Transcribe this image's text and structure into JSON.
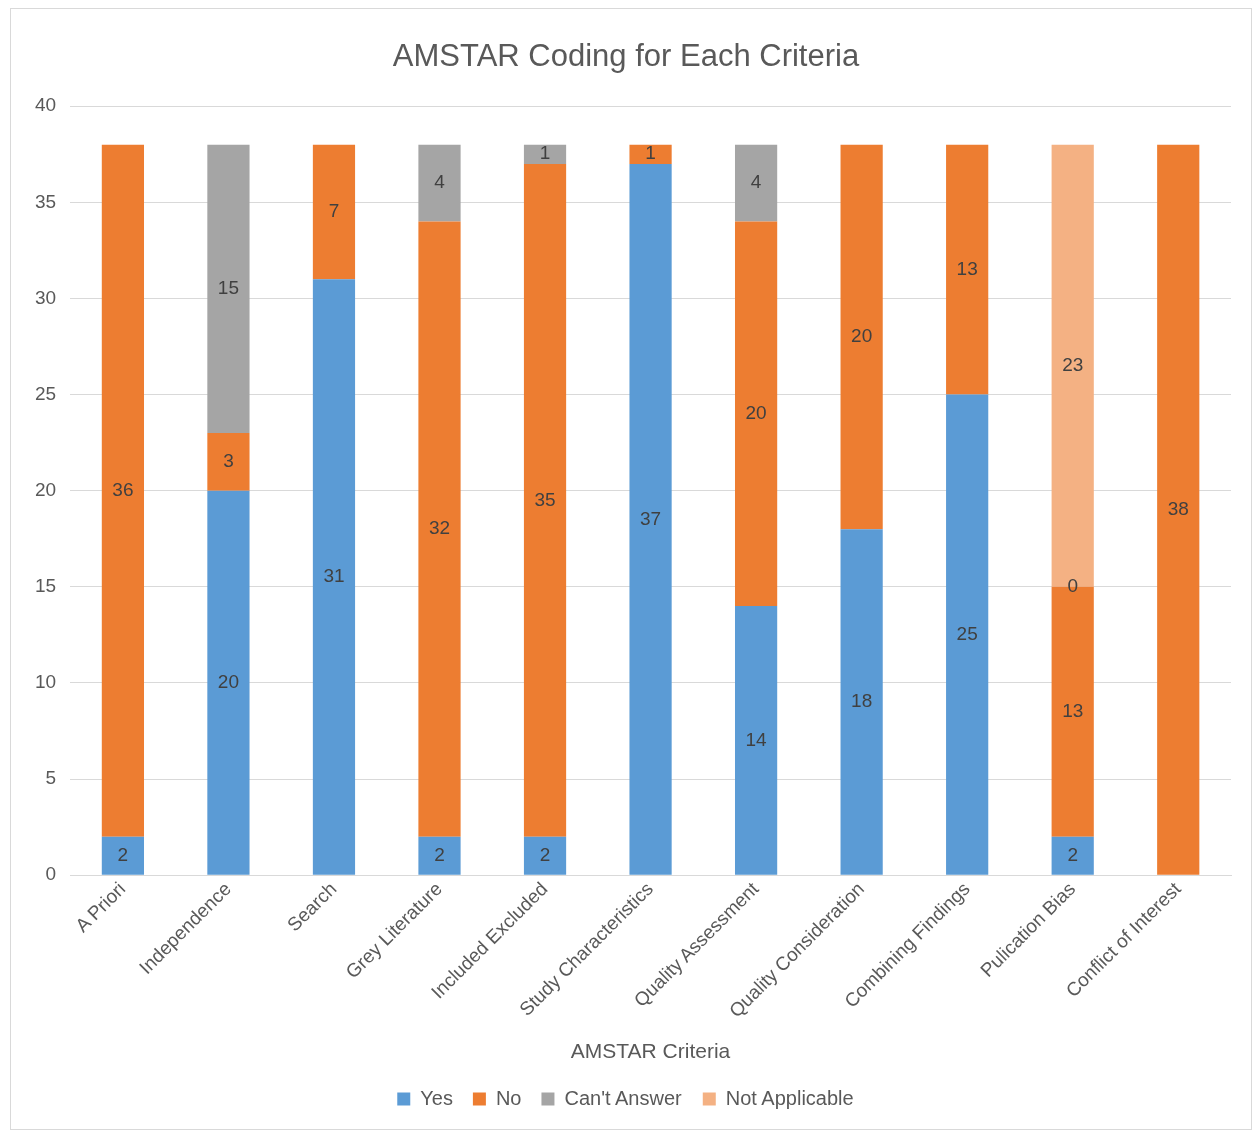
{
  "chart_data": {
    "type": "bar",
    "title": "AMSTAR Coding for Each Criteria",
    "xlabel": "AMSTAR Criteria",
    "categories": [
      "A Priori",
      "Independence",
      "Search",
      "Grey Literature",
      "Included Excluded",
      "Study Characteristics",
      "Quality Assessment",
      "Quality Consideration",
      "Combining Findings",
      "Pulication Bias",
      "Conflict of Interest"
    ],
    "series": [
      {
        "name": "Yes",
        "color": "#5b9bd5",
        "values": [
          2,
          20,
          31,
          2,
          2,
          37,
          14,
          18,
          25,
          2,
          null
        ]
      },
      {
        "name": "No",
        "color": "#ed7d31",
        "values": [
          36,
          3,
          7,
          32,
          35,
          1,
          20,
          20,
          13,
          13,
          38
        ]
      },
      {
        "name": "Can't Answer",
        "color": "#a5a5a5",
        "values": [
          null,
          15,
          null,
          4,
          1,
          null,
          4,
          null,
          null,
          null,
          null
        ]
      },
      {
        "name": "Not Applicable",
        "color": "#f4b183",
        "values": [
          null,
          null,
          null,
          null,
          null,
          null,
          null,
          null,
          null,
          23,
          null
        ]
      }
    ],
    "stacked": true,
    "ylim": [
      0,
      40
    ],
    "yticks": [
      0,
      5,
      10,
      15,
      20,
      25,
      30,
      35,
      40
    ],
    "grid": "y",
    "legend": "bottom",
    "data_labels": true,
    "annotations": [
      {
        "text": "0",
        "x": "Pulication Bias",
        "y": 15
      }
    ]
  }
}
